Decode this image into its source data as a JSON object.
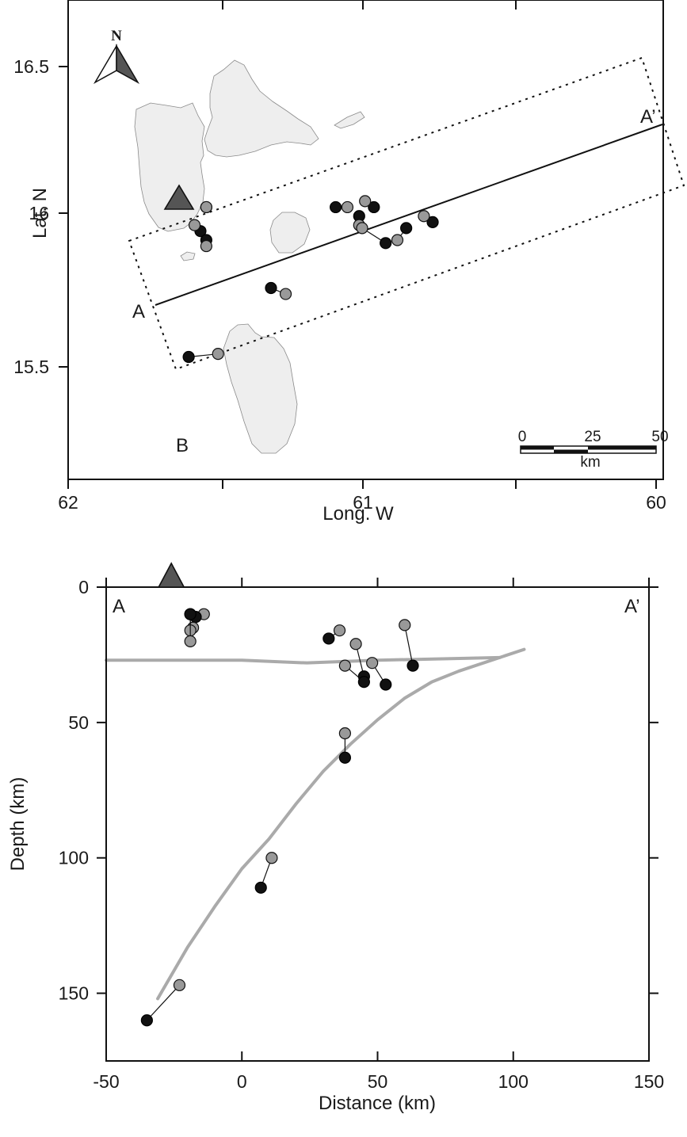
{
  "colors": {
    "relocated": "#999999",
    "original": "#111111",
    "volcano": "#555555",
    "interface": "#aaaaaa",
    "island": "#eeeeee"
  },
  "map": {
    "xlabel": "Long. W",
    "ylabel": "Lat. N",
    "panel_label": "B",
    "north_label": "N",
    "x_ticks": [
      "62",
      "61",
      "60"
    ],
    "y_ticks": [
      "16.5",
      "16",
      "15.5"
    ],
    "profile_start_label": "A",
    "profile_end_label": "A’",
    "scale_bar": {
      "labels": [
        "0",
        "25",
        "50"
      ],
      "unit": "km"
    },
    "volcano": {
      "lon": -61.66,
      "lat": 16.05
    },
    "profile_line": {
      "start": {
        "lon": -61.74,
        "lat": 15.72
      },
      "end": {
        "lon": -60.02,
        "lat": 16.29
      }
    },
    "profile_box": [
      {
        "lon": -61.82,
        "lat": 15.92
      },
      {
        "lon": -60.13,
        "lat": 16.52
      },
      {
        "lon": -59.96,
        "lat": 16.09
      },
      {
        "lon": -61.66,
        "lat": 15.49
      }
    ]
  },
  "chart_data": [
    {
      "type": "scatter",
      "title": "",
      "xlabel": "Long. W",
      "ylabel": "Lat. N",
      "xlim": [
        -62,
        -60
      ],
      "ylim": [
        15.2,
        16.7
      ],
      "series": [
        {
          "name": "",
          "note": "pairs of grey and black circles joined by a thin line",
          "pairs": [
            {
              "grey": [
                -61.53,
                16.02
              ],
              "black": [
                -61.53,
                16.02
              ]
            },
            {
              "grey": [
                -61.57,
                15.96
              ],
              "black": [
                -61.55,
                15.94
              ]
            },
            {
              "grey": [
                -61.53,
                15.89
              ],
              "black": [
                -61.53,
                15.91
              ]
            },
            {
              "grey": [
                -61.05,
                16.02
              ],
              "black": [
                -61.09,
                16.02
              ]
            },
            {
              "grey": [
                -60.99,
                16.04
              ],
              "black": [
                -60.96,
                16.02
              ]
            },
            {
              "grey": [
                -61.01,
                15.96
              ],
              "black": [
                -61.01,
                15.99
              ]
            },
            {
              "grey": [
                -61.0,
                15.95
              ],
              "black": [
                -60.92,
                15.9
              ]
            },
            {
              "grey": [
                -60.88,
                15.91
              ],
              "black": [
                -60.85,
                15.95
              ]
            },
            {
              "grey": [
                -60.79,
                15.99
              ],
              "black": [
                -60.76,
                15.97
              ]
            },
            {
              "grey": [
                -61.26,
                15.73
              ],
              "black": [
                -61.31,
                15.75
              ]
            },
            {
              "grey": [
                -61.49,
                15.53
              ],
              "black": [
                -61.59,
                15.52
              ]
            }
          ]
        }
      ]
    },
    {
      "type": "scatter",
      "title": "",
      "xlabel": "Distance (km)",
      "ylabel": "Depth (km)",
      "xlim": [
        -50,
        150
      ],
      "ylim": [
        0,
        175
      ],
      "x_ticks": [
        -50,
        0,
        50,
        100,
        150
      ],
      "y_ticks": [
        0,
        50,
        100,
        150
      ],
      "volcano_distance": -26,
      "corner_labels": [
        "A",
        "A’"
      ],
      "series": [
        {
          "name": "",
          "note": "grey = relocated hypocentre, black = original; joined by thin lines",
          "pairs": [
            {
              "grey": [
                -14,
                10
              ],
              "black": [
                -19,
                10
              ]
            },
            {
              "grey": [
                -18,
                15
              ],
              "black": [
                -17,
                11
              ]
            },
            {
              "grey": [
                -19,
                16
              ],
              "black": [
                -19,
                10
              ]
            },
            {
              "grey": [
                -19,
                20
              ],
              "black": [
                -19,
                10
              ]
            },
            {
              "grey": [
                36,
                16
              ],
              "black": [
                32,
                19
              ]
            },
            {
              "grey": [
                42,
                21
              ],
              "black": [
                45,
                33
              ]
            },
            {
              "grey": [
                38,
                29
              ],
              "black": [
                45,
                35
              ]
            },
            {
              "grey": [
                48,
                28
              ],
              "black": [
                53,
                36
              ]
            },
            {
              "grey": [
                60,
                14
              ],
              "black": [
                63,
                29
              ]
            },
            {
              "grey": [
                38,
                54
              ],
              "black": [
                38,
                63
              ]
            },
            {
              "grey": [
                11,
                100
              ],
              "black": [
                7,
                111
              ]
            },
            {
              "grey": [
                -23,
                147
              ],
              "black": [
                -35,
                160
              ]
            }
          ]
        },
        {
          "name": "",
          "type": "line",
          "note": "slab interface",
          "x": [
            -31,
            -20,
            -10,
            0,
            10,
            20,
            30,
            40,
            50,
            60,
            70,
            80,
            95,
            104
          ],
          "y": [
            152,
            133,
            118,
            104,
            93,
            80,
            68,
            58,
            49,
            41,
            35,
            31,
            26,
            23
          ]
        },
        {
          "name": "",
          "type": "line",
          "note": "crustal layer",
          "x": [
            -50,
            0,
            24,
            50,
            95
          ],
          "y": [
            27,
            27,
            28,
            27,
            26
          ]
        }
      ]
    }
  ]
}
